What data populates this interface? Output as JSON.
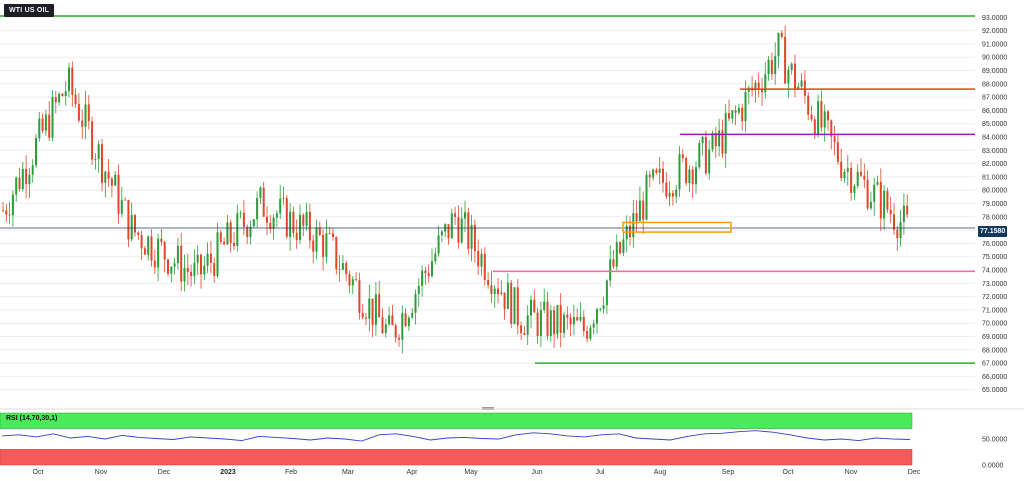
{
  "header": {
    "title": "WTI US OIL"
  },
  "rsi": {
    "label": "RSI (14,70,30,1)"
  },
  "current_price": {
    "label": "77.1580"
  },
  "chart_data": [
    {
      "type": "candlestick",
      "instrument": "WTI US OIL",
      "yaxis_position": "right",
      "ylim": [
        64.0,
        94.0
      ],
      "y_ticks": [
        "65.0000",
        "66.0000",
        "67.0000",
        "68.0000",
        "69.0000",
        "70.0000",
        "71.0000",
        "72.0000",
        "73.0000",
        "74.0000",
        "75.0000",
        "76.0000",
        "77.0000",
        "78.0000",
        "79.0000",
        "80.0000",
        "81.0000",
        "82.0000",
        "83.0000",
        "84.0000",
        "85.0000",
        "86.0000",
        "87.0000",
        "88.0000",
        "89.0000",
        "90.0000",
        "91.0000",
        "92.0000",
        "93.0000"
      ],
      "x_ticks": [
        "Oct",
        "Nov",
        "Dec",
        "2023",
        "Feb",
        "Mar",
        "Apr",
        "May",
        "Jun",
        "Jul",
        "Aug",
        "Sep",
        "Oct",
        "Nov",
        "Dec"
      ],
      "last_price": 77.158,
      "colors": {
        "up": "#2a9d3a",
        "down": "#e0462c"
      },
      "price_path": [
        {
          "x": "Oct",
          "y": 78.5
        },
        {
          "x": "Nov",
          "y": 88.0
        },
        {
          "x": "Dec",
          "y": 77.0
        },
        {
          "x": "2023",
          "y": 73.5
        },
        {
          "x": "Feb",
          "y": 79.0
        },
        {
          "x": "Mar",
          "y": 76.0
        },
        {
          "x": "Apr",
          "y": 69.0
        },
        {
          "x": "May",
          "y": 78.0
        },
        {
          "x": "Jun",
          "y": 70.5
        },
        {
          "x": "Jul",
          "y": 69.5
        },
        {
          "x": "Aug",
          "y": 80.0
        },
        {
          "x": "Sep",
          "y": 83.0
        },
        {
          "x": "Oct",
          "y": 90.5
        },
        {
          "x": "Nov",
          "y": 82.0
        },
        {
          "x": "Dec",
          "y": 77.2
        }
      ],
      "horizontal_levels": [
        {
          "value": 93.1,
          "color": "#2ab02a"
        },
        {
          "value": 87.6,
          "color": "#e8401c"
        },
        {
          "value": 84.2,
          "color": "#9b1ab0"
        },
        {
          "value": 77.158,
          "color": "#1f3a60"
        },
        {
          "value": 73.9,
          "color": "#f06ba8"
        },
        {
          "value": 67.0,
          "color": "#2ab02a"
        }
      ],
      "zones": [
        {
          "label": "",
          "y_low": 77.0,
          "y_high": 77.5,
          "color": "#f5a000"
        }
      ]
    },
    {
      "type": "line",
      "name": "RSI (14,70,30,1)",
      "ylim": [
        0,
        100
      ],
      "y_ticks": [
        "50.0000",
        "0.0000"
      ],
      "overbought": 70,
      "oversold": 30,
      "zone_colors": {
        "overbought": "#4cea5a",
        "oversold": "#f75a5a"
      },
      "line_color": "#2e44c8",
      "values": [
        56,
        58,
        54,
        60,
        52,
        55,
        50,
        57,
        53,
        51,
        49,
        54,
        52,
        50,
        47,
        55,
        53,
        51,
        48,
        52,
        50,
        46,
        58,
        60,
        55,
        48,
        52,
        53,
        51,
        50,
        58,
        62,
        60,
        56,
        54,
        58,
        60,
        52,
        50,
        48,
        55,
        60,
        61,
        64,
        66,
        63,
        58,
        52,
        48,
        50,
        47,
        52,
        50,
        49
      ]
    }
  ]
}
